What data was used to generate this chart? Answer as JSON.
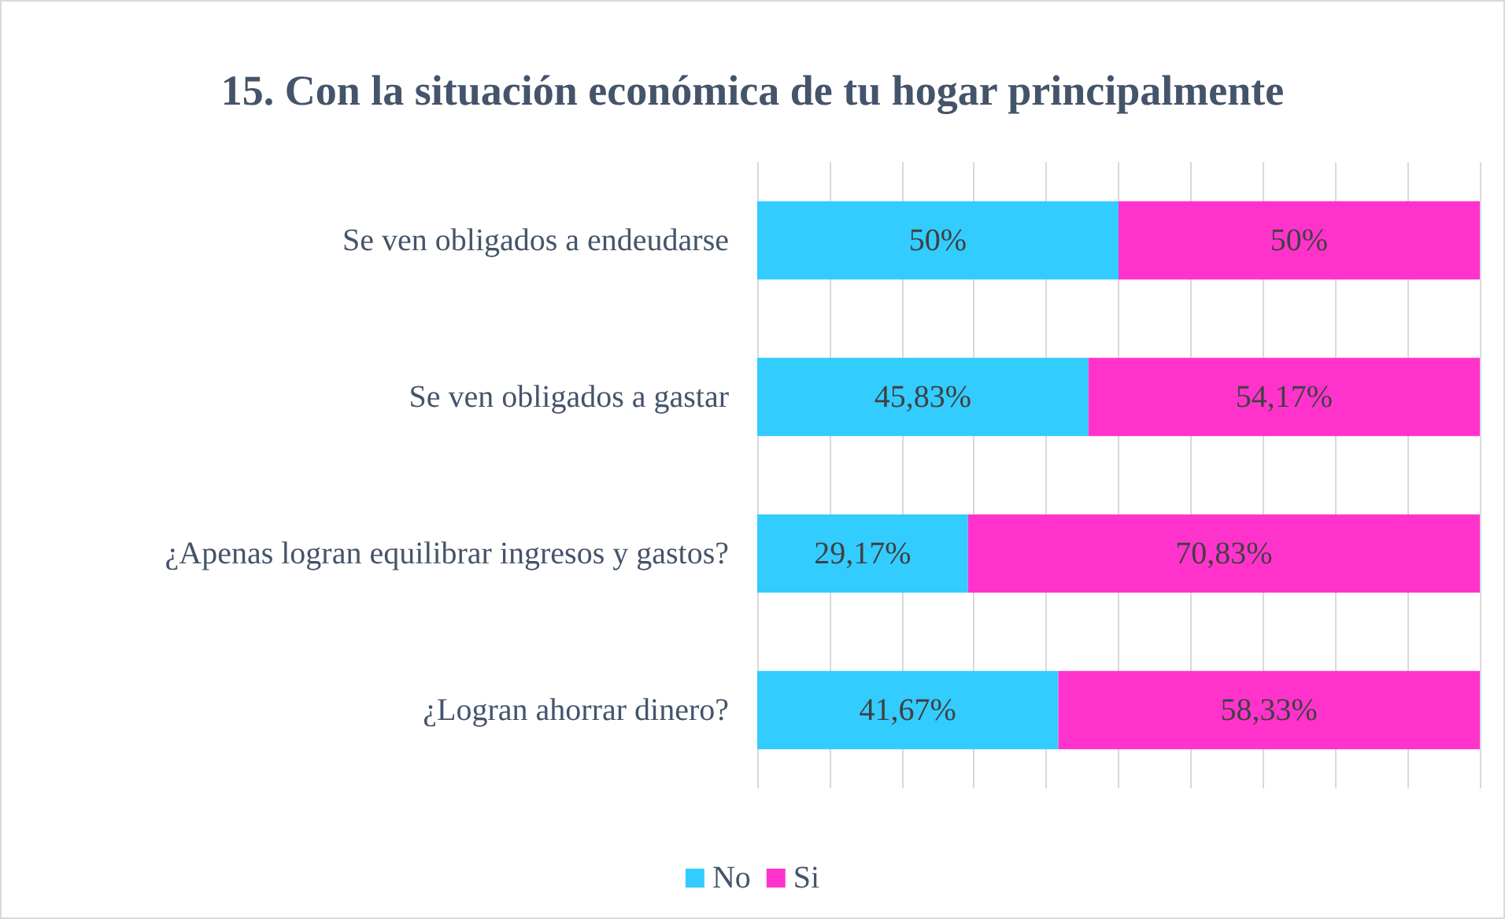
{
  "chart_data": {
    "type": "bar",
    "orientation": "horizontal",
    "stacked": true,
    "title": "15. Con la situación económica de tu hogar principalmente",
    "categories": [
      "Se ven obligados a endeudarse",
      "Se ven obligados a gastar",
      "¿Apenas logran equilibrar ingresos y gastos?",
      "¿Logran ahorrar dinero?"
    ],
    "series": [
      {
        "name": "No",
        "color": "#33ccff",
        "values": [
          50,
          45.83,
          29.17,
          41.67
        ],
        "value_labels": [
          "50%",
          "45,83%",
          "29,17%",
          "41,67%"
        ]
      },
      {
        "name": "Si",
        "color": "#ff33cc",
        "values": [
          50,
          54.17,
          70.83,
          58.33
        ],
        "value_labels": [
          "50%",
          "54,17%",
          "70,83%",
          "58,33%"
        ]
      }
    ],
    "xlim": [
      0,
      100
    ],
    "xticks": [
      {
        "value": 0,
        "label": null
      },
      {
        "value": 10,
        "label": null
      },
      {
        "value": 20,
        "label": null
      },
      {
        "value": 30,
        "label": null
      },
      {
        "value": 40,
        "label": null
      },
      {
        "value": 50,
        "label": null
      },
      {
        "value": 60,
        "label": null
      },
      {
        "value": 70,
        "label": null
      },
      {
        "value": 80,
        "label": null
      },
      {
        "value": 90,
        "label": null
      },
      {
        "value": 100,
        "label": null
      }
    ],
    "grid": "x",
    "legend": "bottom",
    "tick_labels": "y"
  }
}
